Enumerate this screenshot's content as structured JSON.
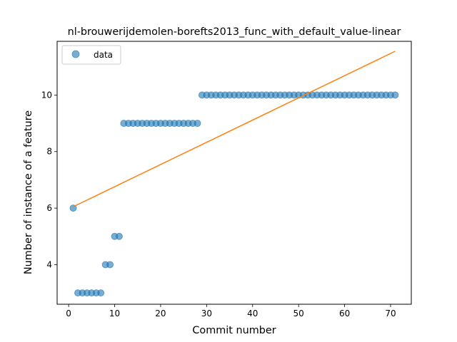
{
  "chart_data": {
    "type": "scatter",
    "title": "nl-brouwerijdemolen-borefts2013_func_with_default_value-linear",
    "xlabel": "Commit number",
    "ylabel": "Number of instance of a feature",
    "xlim": [
      -2.5,
      74.5
    ],
    "ylim": [
      2.6,
      11.9
    ],
    "xticks": [
      0,
      10,
      20,
      30,
      40,
      50,
      60,
      70
    ],
    "yticks": [
      4,
      6,
      8,
      10
    ],
    "legend": {
      "position": "upper-left",
      "entries": [
        "data"
      ]
    },
    "colors": {
      "data": "#1f77b4",
      "fit": "#ff7f0e"
    },
    "series": [
      {
        "name": "data",
        "kind": "scatter",
        "x": [
          1,
          2,
          3,
          4,
          5,
          6,
          7,
          8,
          9,
          10,
          11,
          12,
          13,
          14,
          15,
          16,
          17,
          18,
          19,
          20,
          21,
          22,
          23,
          24,
          25,
          26,
          27,
          28,
          29,
          30,
          31,
          32,
          33,
          34,
          35,
          36,
          37,
          38,
          39,
          40,
          41,
          42,
          43,
          44,
          45,
          46,
          47,
          48,
          49,
          50,
          51,
          52,
          53,
          54,
          55,
          56,
          57,
          58,
          59,
          60,
          61,
          62,
          63,
          64,
          65,
          66,
          67,
          68,
          69,
          70,
          71
        ],
        "y": [
          6,
          3,
          3,
          3,
          3,
          3,
          3,
          4,
          4,
          5,
          5,
          9,
          9,
          9,
          9,
          9,
          9,
          9,
          9,
          9,
          9,
          9,
          9,
          9,
          9,
          9,
          9,
          9,
          10,
          10,
          10,
          10,
          10,
          10,
          10,
          10,
          10,
          10,
          10,
          10,
          10,
          10,
          10,
          10,
          10,
          10,
          10,
          10,
          10,
          10,
          10,
          10,
          10,
          10,
          10,
          10,
          10,
          10,
          10,
          10,
          10,
          10,
          10,
          10,
          10,
          10,
          10,
          10,
          10,
          10,
          10
        ]
      },
      {
        "kind": "line",
        "x": [
          1,
          71
        ],
        "y": [
          6.05,
          11.55
        ]
      }
    ]
  }
}
